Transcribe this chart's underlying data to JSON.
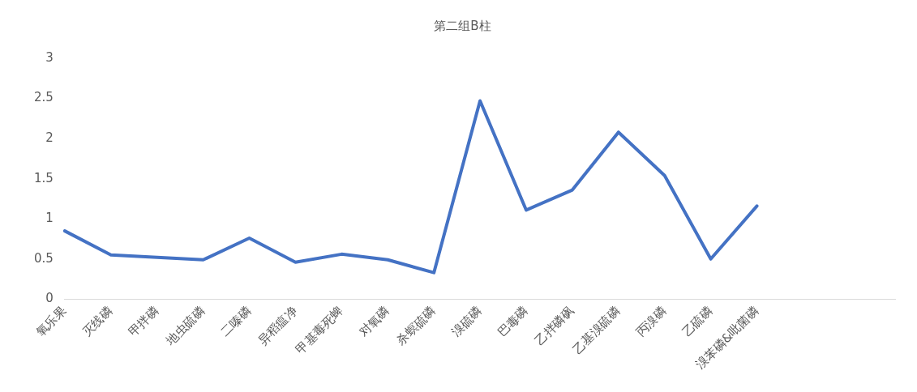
{
  "chart_data": {
    "type": "line",
    "title": "第二组B柱",
    "categories": [
      "氧乐果",
      "灭线磷",
      "甲拌磷",
      "地虫硫磷",
      "二嗪磷",
      "异稻瘟净",
      "甲基毒死蜱",
      "对氧磷",
      "杀螟硫磷",
      "溴硫磷",
      "巴毒磷",
      "乙拌磷砜",
      "乙基溴硫磷",
      "丙溴磷",
      "乙硫磷",
      "溴苯磷&吡菌磷",
      null,
      null,
      null
    ],
    "series": [
      {
        "color": "#4472c4",
        "values": [
          0.85,
          0.55,
          0.52,
          0.49,
          0.76,
          0.46,
          0.56,
          0.49,
          0.33,
          2.47,
          1.11,
          1.36,
          2.08,
          1.54,
          0.5,
          1.16,
          null,
          null,
          null
        ]
      }
    ],
    "ylim": [
      0,
      3
    ],
    "yticks": [
      0,
      0.5,
      1,
      1.5,
      2,
      2.5,
      3
    ],
    "grid": false,
    "legend": false,
    "marker": "none",
    "line_style": "solid"
  }
}
